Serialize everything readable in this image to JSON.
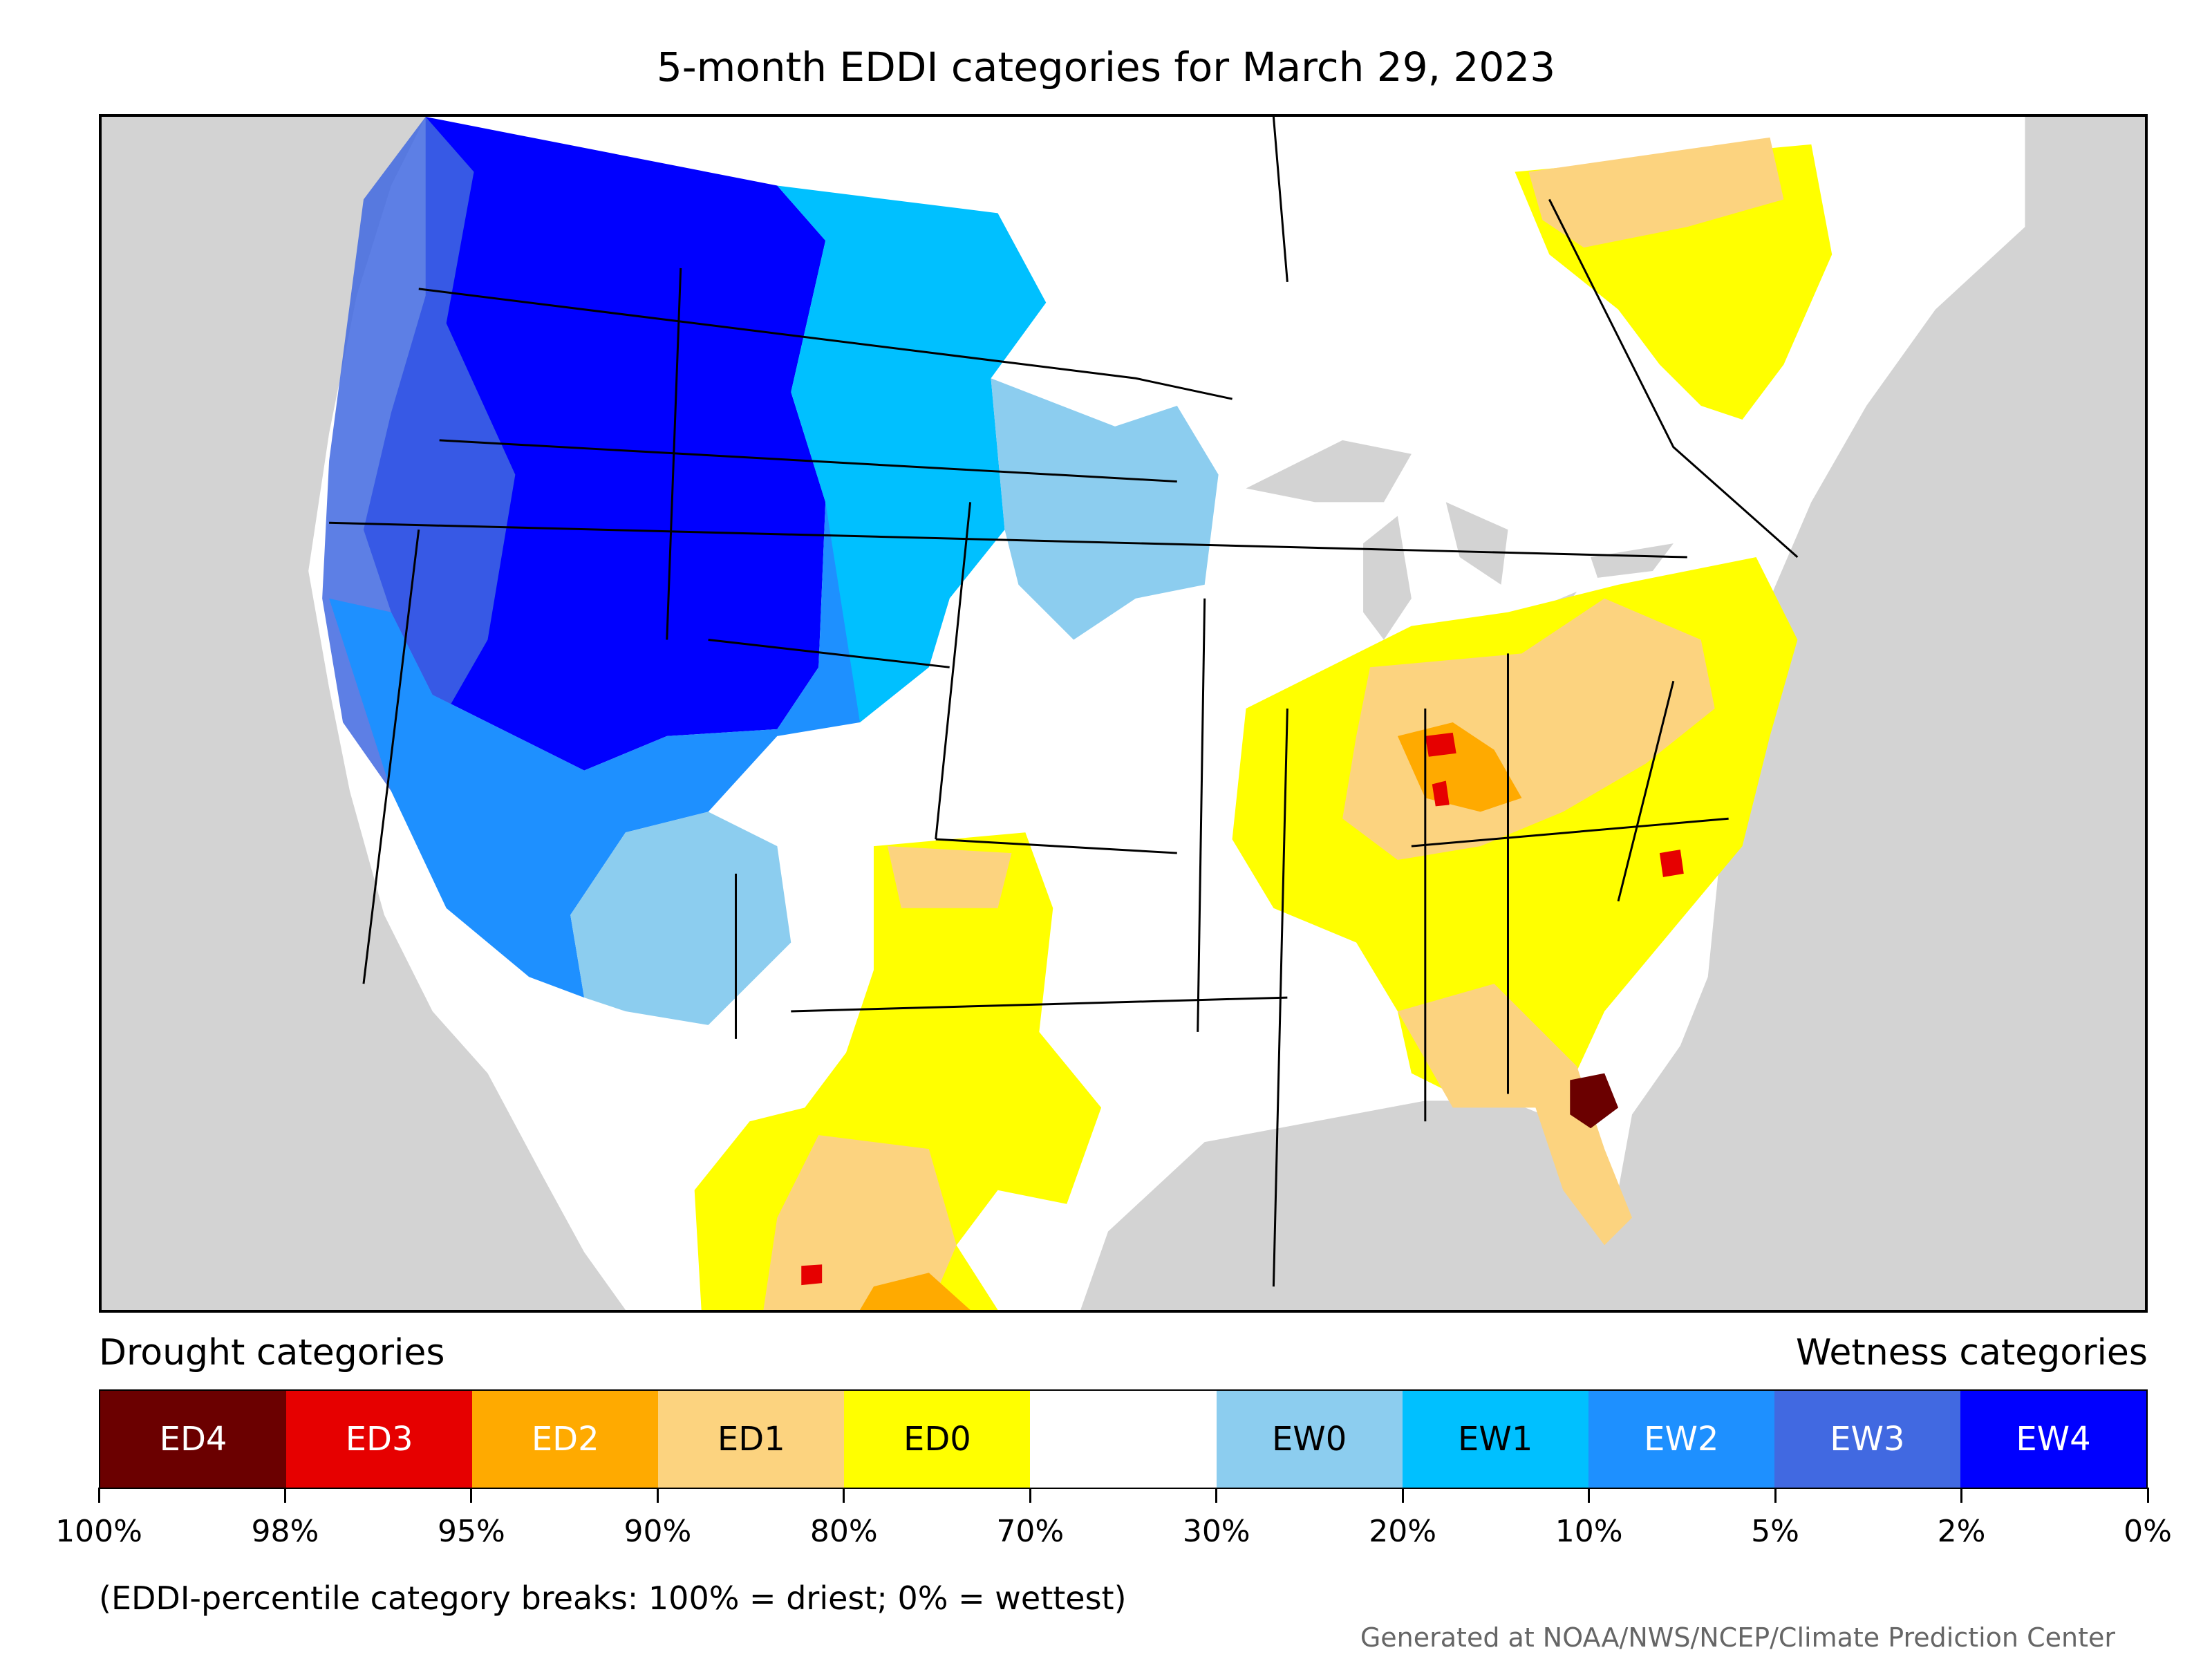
{
  "title": "5-month EDDI categories for March 29, 2023",
  "legend": {
    "drought_heading": "Drought categories",
    "wetness_heading": "Wetness categories",
    "categories": [
      {
        "label": "ED4",
        "color": "#6b0000",
        "text_color": "#ffffff"
      },
      {
        "label": "ED3",
        "color": "#e60000",
        "text_color": "#ffffff"
      },
      {
        "label": "ED2",
        "color": "#ffaa00",
        "text_color": "#ffffff"
      },
      {
        "label": "ED1",
        "color": "#fcd37f",
        "text_color": "#000000"
      },
      {
        "label": "ED0",
        "color": "#ffff00",
        "text_color": "#000000"
      },
      {
        "label": "",
        "color": "#ffffff",
        "text_color": "#000000"
      },
      {
        "label": "EW0",
        "color": "#8ccdef",
        "text_color": "#000000"
      },
      {
        "label": "EW1",
        "color": "#00c0ff",
        "text_color": "#000000"
      },
      {
        "label": "EW2",
        "color": "#1e90ff",
        "text_color": "#ffffff"
      },
      {
        "label": "EW3",
        "color": "#4169e1",
        "text_color": "#ffffff"
      },
      {
        "label": "EW4",
        "color": "#0000ff",
        "text_color": "#ffffff"
      }
    ],
    "tick_labels": [
      "100%",
      "98%",
      "95%",
      "90%",
      "80%",
      "70%",
      "30%",
      "20%",
      "10%",
      "5%",
      "2%",
      "0%"
    ]
  },
  "footnote": "(EDDI-percentile category breaks: 100% = driest; 0% = wettest)",
  "credit": "Generated at NOAA/NWS/NCEP/Climate Prediction Center",
  "map_colors": {
    "ocean": "#d3d3d3",
    "land": "#ffffff",
    "borders": "#000000"
  }
}
